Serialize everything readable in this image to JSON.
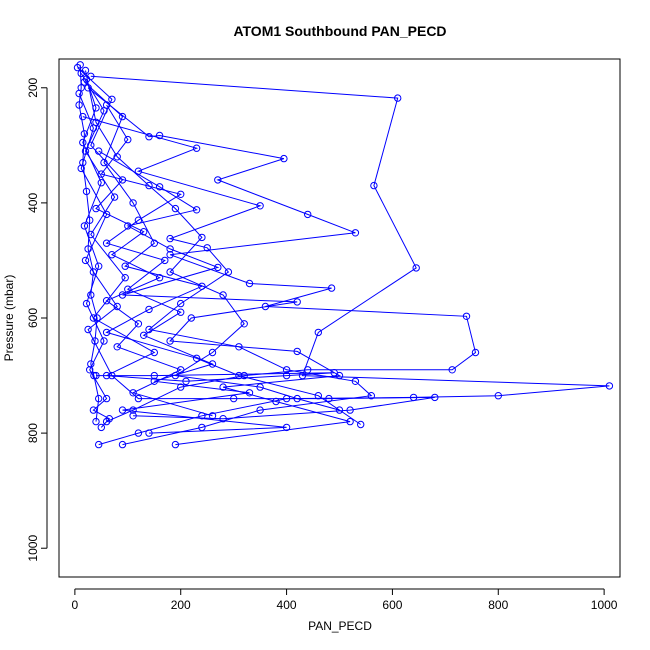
{
  "chart_data": {
    "type": "line",
    "title": "ATOM1 Southbound PAN_PECD",
    "xlabel": "PAN_PECD",
    "ylabel": "Pressure (mbar)",
    "xlim": [
      -30,
      1030
    ],
    "ylim": [
      1050,
      150
    ],
    "y_reversed": true,
    "grid": false,
    "x_ticks": [
      0,
      200,
      400,
      600,
      800,
      1000
    ],
    "y_ticks": [
      200,
      400,
      600,
      800,
      1000
    ],
    "series_color": "#0000ff",
    "series": [
      {
        "values": [
          [
            10,
            160
          ],
          [
            12,
            200
          ],
          [
            8,
            230
          ],
          [
            18,
            280
          ],
          [
            15,
            330
          ],
          [
            22,
            380
          ],
          [
            28,
            430
          ],
          [
            25,
            480
          ],
          [
            35,
            520
          ],
          [
            30,
            560
          ],
          [
            42,
            600
          ],
          [
            38,
            640
          ],
          [
            30,
            680
          ],
          [
            36,
            700
          ],
          [
            45,
            740
          ],
          [
            40,
            780
          ]
        ]
      },
      {
        "values": [
          [
            20,
            170
          ],
          [
            40,
            260
          ],
          [
            80,
            320
          ],
          [
            140,
            370
          ],
          [
            190,
            410
          ],
          [
            240,
            460
          ],
          [
            180,
            520
          ],
          [
            280,
            560
          ],
          [
            320,
            610
          ],
          [
            260,
            660
          ],
          [
            190,
            700
          ],
          [
            350,
            720
          ],
          [
            420,
            740
          ],
          [
            500,
            760
          ]
        ]
      },
      {
        "values": [
          [
            30,
            180
          ],
          [
            610,
            218
          ],
          [
            565,
            370
          ],
          [
            645,
            513
          ],
          [
            460,
            625
          ],
          [
            430,
            700
          ],
          [
            1010,
            718
          ],
          [
            800,
            735
          ],
          [
            640,
            738
          ],
          [
            400,
            740
          ],
          [
            240,
            770
          ],
          [
            120,
            800
          ],
          [
            45,
            820
          ]
        ]
      },
      {
        "values": [
          [
            25,
            200
          ],
          [
            140,
            285
          ],
          [
            160,
            283
          ],
          [
            395,
            323
          ],
          [
            270,
            360
          ],
          [
            440,
            420
          ],
          [
            530,
            452
          ],
          [
            180,
            490
          ],
          [
            330,
            540
          ],
          [
            485,
            548
          ],
          [
            360,
            580
          ],
          [
            740,
            597
          ],
          [
            757,
            660
          ],
          [
            713,
            690
          ],
          [
            440,
            690
          ],
          [
            320,
            700
          ],
          [
            200,
            720
          ],
          [
            110,
            760
          ],
          [
            60,
            780
          ]
        ]
      },
      {
        "values": [
          [
            15,
            250
          ],
          [
            230,
            305
          ],
          [
            120,
            345
          ],
          [
            350,
            405
          ],
          [
            180,
            462
          ],
          [
            250,
            478
          ],
          [
            290,
            520
          ],
          [
            200,
            575
          ],
          [
            140,
            620
          ],
          [
            310,
            650
          ],
          [
            400,
            690
          ],
          [
            530,
            710
          ],
          [
            560,
            735
          ],
          [
            350,
            760
          ],
          [
            240,
            790
          ],
          [
            90,
            820
          ]
        ]
      },
      {
        "values": [
          [
            45,
            310
          ],
          [
            160,
            372
          ],
          [
            230,
            412
          ],
          [
            100,
            440
          ],
          [
            180,
            480
          ],
          [
            270,
            512
          ],
          [
            90,
            560
          ],
          [
            420,
            572
          ],
          [
            220,
            600
          ],
          [
            180,
            640
          ],
          [
            420,
            658
          ],
          [
            500,
            700
          ],
          [
            280,
            720
          ],
          [
            380,
            745
          ],
          [
            520,
            780
          ],
          [
            190,
            820
          ]
        ]
      },
      {
        "values": [
          [
            60,
            230
          ],
          [
            100,
            290
          ],
          [
            50,
            350
          ],
          [
            200,
            385
          ],
          [
            120,
            430
          ],
          [
            60,
            470
          ],
          [
            170,
            500
          ],
          [
            100,
            550
          ],
          [
            200,
            590
          ],
          [
            130,
            630
          ],
          [
            260,
            680
          ],
          [
            150,
            710
          ],
          [
            330,
            730
          ],
          [
            90,
            760
          ],
          [
            400,
            790
          ],
          [
            140,
            800
          ]
        ]
      },
      {
        "values": [
          [
            5,
            165
          ],
          [
            70,
            220
          ],
          [
            30,
            300
          ],
          [
            90,
            360
          ],
          [
            40,
            410
          ],
          [
            130,
            450
          ],
          [
            70,
            490
          ],
          [
            160,
            530
          ],
          [
            60,
            570
          ],
          [
            120,
            610
          ],
          [
            80,
            650
          ],
          [
            200,
            690
          ],
          [
            110,
            730
          ],
          [
            260,
            770
          ]
        ]
      },
      {
        "values": [
          [
            18,
            190
          ],
          [
            90,
            250
          ],
          [
            55,
            330
          ],
          [
            110,
            400
          ],
          [
            150,
            470
          ],
          [
            95,
            510
          ],
          [
            240,
            545
          ],
          [
            140,
            585
          ],
          [
            60,
            625
          ],
          [
            230,
            670
          ],
          [
            310,
            700
          ],
          [
            460,
            735
          ],
          [
            540,
            785
          ]
        ]
      },
      {
        "values": [
          [
            8,
            210
          ],
          [
            35,
            270
          ],
          [
            12,
            340
          ],
          [
            60,
            420
          ],
          [
            20,
            500
          ],
          [
            80,
            580
          ],
          [
            25,
            620
          ],
          [
            70,
            700
          ],
          [
            120,
            740
          ],
          [
            300,
            740
          ],
          [
            480,
            740
          ],
          [
            680,
            738
          ],
          [
            520,
            760
          ],
          [
            280,
            775
          ],
          [
            110,
            770
          ]
        ]
      },
      {
        "values": [
          [
            12,
            175
          ],
          [
            55,
            240
          ],
          [
            20,
            310
          ],
          [
            75,
            390
          ],
          [
            30,
            455
          ],
          [
            95,
            530
          ],
          [
            35,
            600
          ],
          [
            150,
            660
          ],
          [
            60,
            700
          ],
          [
            210,
            710
          ],
          [
            400,
            700
          ],
          [
            490,
            695
          ],
          [
            150,
            700
          ],
          [
            40,
            700
          ]
        ]
      },
      {
        "values": [
          [
            22,
            185
          ],
          [
            40,
            235
          ],
          [
            15,
            295
          ],
          [
            50,
            365
          ],
          [
            18,
            440
          ],
          [
            45,
            510
          ],
          [
            22,
            575
          ],
          [
            55,
            640
          ],
          [
            28,
            690
          ],
          [
            60,
            740
          ],
          [
            35,
            760
          ],
          [
            65,
            775
          ],
          [
            50,
            790
          ]
        ]
      }
    ]
  }
}
